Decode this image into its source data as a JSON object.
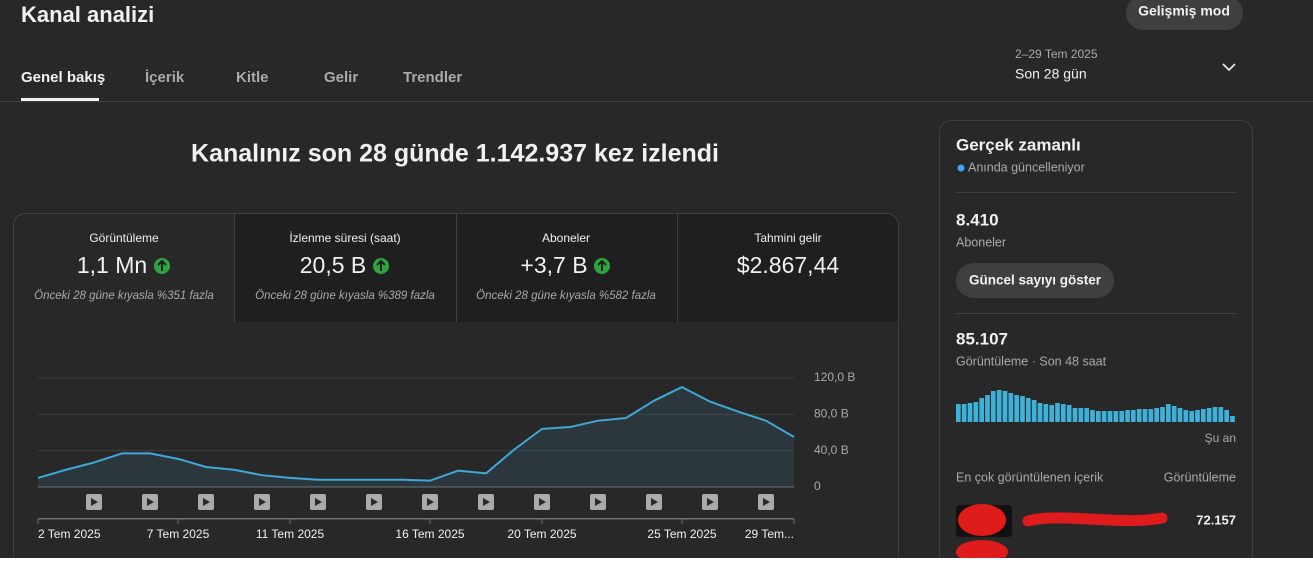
{
  "header": {
    "title": "Kanal analizi",
    "advanced_button": "Gelişmiş mod",
    "tabs": [
      "Genel bakış",
      "İçerik",
      "Kitle",
      "Gelir",
      "Trendler"
    ],
    "date_range": "2–29 Tem 2025",
    "period": "Son 28 gün"
  },
  "headline": "Kanalınız son 28 günde 1.142.937 kez izlendi",
  "metrics": [
    {
      "label": "Görüntüleme",
      "value": "1,1 Mn",
      "note": "Önceki 28 güne kıyasla %351 fazla"
    },
    {
      "label": "İzlenme süresi (saat)",
      "value": "20,5 B",
      "note": "Önceki 28 güne kıyasla %389 fazla"
    },
    {
      "label": "Aboneler",
      "value": "+3,7 B",
      "note": "Önceki 28 güne kıyasla %582 fazla"
    },
    {
      "label": "Tahmini gelir",
      "value": "$2.867,44"
    }
  ],
  "chart_data": [
    {
      "type": "line",
      "categories": [
        "2 Tem 2025",
        null,
        null,
        null,
        null,
        "7 Tem 2025",
        null,
        null,
        null,
        "11 Tem 2025",
        null,
        null,
        null,
        null,
        "16 Tem 2025",
        null,
        null,
        null,
        "20 Tem 2025",
        null,
        null,
        null,
        null,
        "25 Tem 2025",
        null,
        null,
        null,
        "29 Tem..."
      ],
      "values": [
        10,
        19,
        27,
        37,
        37,
        31,
        22,
        19,
        13,
        10,
        8,
        8,
        8,
        8,
        7,
        18,
        15,
        41,
        64,
        66,
        73,
        76,
        95,
        110,
        94,
        83,
        73,
        55
      ],
      "color": "#3ea8d6",
      "ylim": [
        0,
        120
      ],
      "yticks": [
        0,
        {
          "value": 40,
          "label": "40,0 B"
        },
        {
          "value": 80,
          "label": "80,0 B"
        },
        {
          "value": 120,
          "label": "120,0 B"
        }
      ],
      "grid": true
    },
    {
      "type": "bar",
      "values": [
        1800,
        1800,
        1900,
        2000,
        2400,
        2700,
        3100,
        3200,
        3100,
        2900,
        2700,
        2600,
        2400,
        2200,
        1900,
        1800,
        1700,
        1900,
        1800,
        1700,
        1400,
        1400,
        1400,
        1200,
        1100,
        1100,
        1100,
        1100,
        1100,
        1200,
        1200,
        1300,
        1300,
        1300,
        1400,
        1500,
        1800,
        1600,
        1400,
        1200,
        1100,
        1200,
        1300,
        1400,
        1500,
        1500,
        1200,
        600
      ],
      "color": "#3eb1d8"
    }
  ],
  "realtime": {
    "title": "Gerçek zamanlı",
    "status": "Anında güncelleniyor",
    "subscribers": "8.410",
    "subscribers_label": "Aboneler",
    "button": "Güncel sayıyı göster",
    "views": "85.107",
    "views_label": "Görüntüleme · Son 48 saat",
    "now_label": "Şu an",
    "top_title": "En çok görüntülenen içerik",
    "top_column": "Görüntüleme",
    "top_items": [
      {
        "views": "72.157"
      }
    ]
  }
}
